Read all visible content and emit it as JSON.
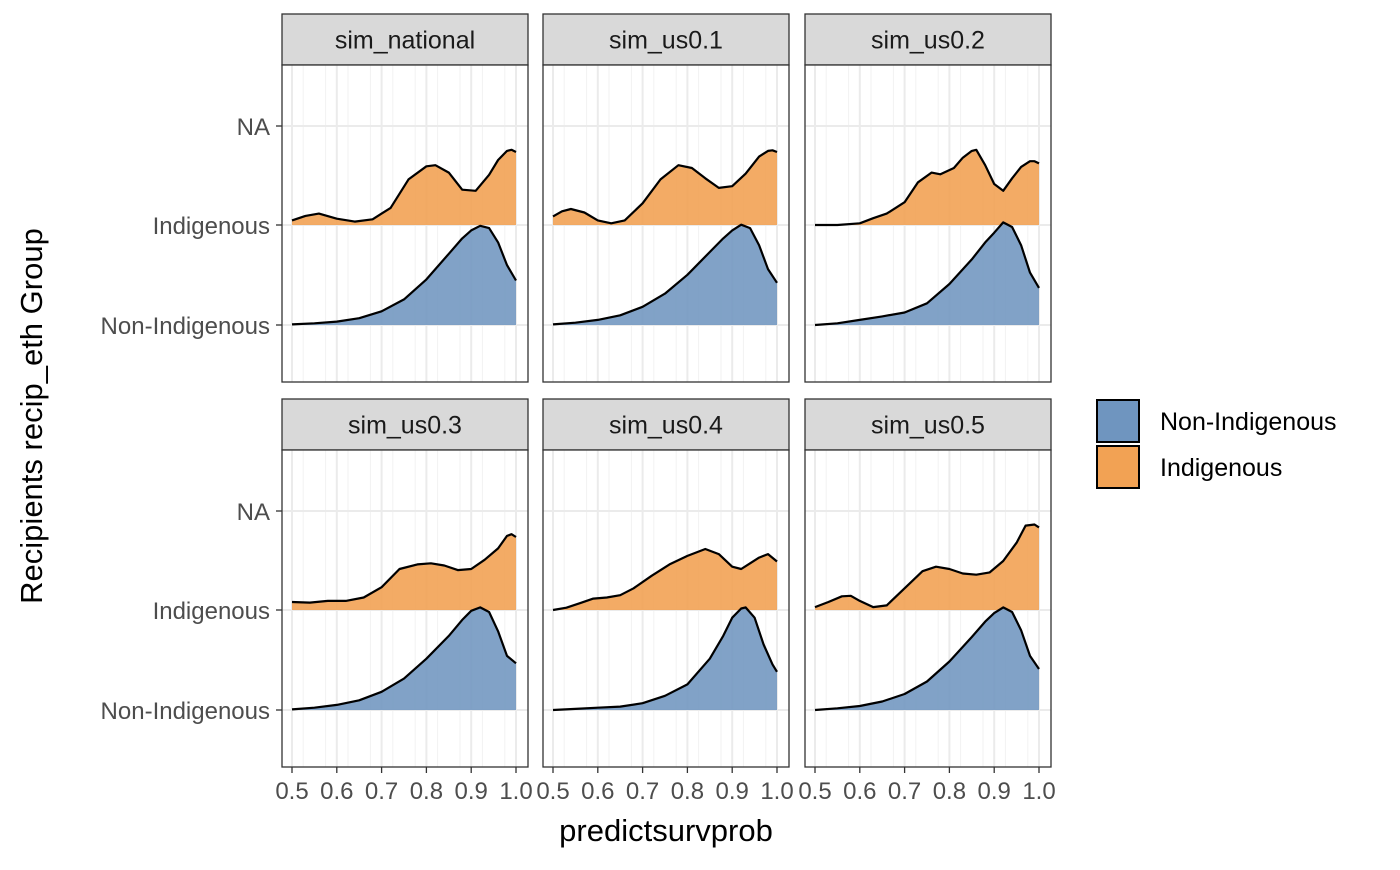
{
  "chart_data": {
    "type": "ridgeline-density",
    "xlabel": "predictsurvprob",
    "ylabel": "Recipients recip_eth Group",
    "xlim": [
      0.5,
      1.0
    ],
    "x_ticks": [
      "0.5",
      "0.6",
      "0.7",
      "0.8",
      "0.9",
      "1.0"
    ],
    "y_categories": [
      "Non-Indigenous",
      "Indigenous",
      "NA"
    ],
    "grid": true,
    "legend_position": "right",
    "legend": [
      {
        "label": "Non-Indigenous",
        "color": "#6f95bf"
      },
      {
        "label": "Indigenous",
        "color": "#f2a254"
      }
    ],
    "series_colors": {
      "Non-Indigenous": "#6f95bf",
      "Indigenous": "#f2a254"
    },
    "panels": [
      {
        "title": "sim_national",
        "series": [
          {
            "name": "Non-Indigenous",
            "baseline": "Non-Indigenous",
            "x": [
              0.5,
              0.55,
              0.6,
              0.65,
              0.7,
              0.75,
              0.8,
              0.85,
              0.88,
              0.9,
              0.92,
              0.94,
              0.96,
              0.98,
              1.0
            ],
            "y": [
              0.01,
              0.03,
              0.06,
              0.12,
              0.24,
              0.45,
              0.8,
              1.25,
              1.52,
              1.66,
              1.74,
              1.7,
              1.45,
              1.05,
              0.78
            ]
          },
          {
            "name": "Indigenous",
            "baseline": "Indigenous",
            "x": [
              0.5,
              0.53,
              0.56,
              0.6,
              0.64,
              0.68,
              0.72,
              0.76,
              0.8,
              0.82,
              0.85,
              0.88,
              0.91,
              0.94,
              0.96,
              0.98,
              0.99,
              1.0
            ],
            "y": [
              0.08,
              0.16,
              0.2,
              0.11,
              0.06,
              0.1,
              0.3,
              0.8,
              1.03,
              1.05,
              0.92,
              0.62,
              0.6,
              0.88,
              1.14,
              1.3,
              1.32,
              1.28
            ]
          }
        ]
      },
      {
        "title": "sim_us0.1",
        "series": [
          {
            "name": "Non-Indigenous",
            "baseline": "Non-Indigenous",
            "x": [
              0.5,
              0.55,
              0.6,
              0.65,
              0.7,
              0.75,
              0.8,
              0.85,
              0.88,
              0.9,
              0.92,
              0.94,
              0.96,
              0.98,
              1.0
            ],
            "y": [
              0.01,
              0.04,
              0.09,
              0.17,
              0.32,
              0.55,
              0.88,
              1.28,
              1.52,
              1.66,
              1.76,
              1.7,
              1.4,
              0.98,
              0.74
            ]
          },
          {
            "name": "Indigenous",
            "baseline": "Indigenous",
            "x": [
              0.5,
              0.52,
              0.54,
              0.57,
              0.6,
              0.63,
              0.66,
              0.7,
              0.74,
              0.78,
              0.81,
              0.84,
              0.87,
              0.9,
              0.93,
              0.96,
              0.98,
              0.99,
              1.0
            ],
            "y": [
              0.15,
              0.24,
              0.28,
              0.22,
              0.08,
              0.03,
              0.08,
              0.38,
              0.8,
              1.05,
              1.0,
              0.82,
              0.65,
              0.68,
              0.9,
              1.2,
              1.3,
              1.31,
              1.28
            ]
          }
        ]
      },
      {
        "title": "sim_us0.2",
        "series": [
          {
            "name": "Non-Indigenous",
            "baseline": "Non-Indigenous",
            "x": [
              0.5,
              0.55,
              0.6,
              0.65,
              0.7,
              0.75,
              0.8,
              0.85,
              0.88,
              0.9,
              0.92,
              0.94,
              0.96,
              0.98,
              1.0
            ],
            "y": [
              0.0,
              0.03,
              0.09,
              0.15,
              0.22,
              0.38,
              0.72,
              1.15,
              1.45,
              1.62,
              1.8,
              1.72,
              1.4,
              0.92,
              0.65
            ]
          },
          {
            "name": "Indigenous",
            "baseline": "Indigenous",
            "x": [
              0.5,
              0.55,
              0.6,
              0.63,
              0.66,
              0.7,
              0.73,
              0.76,
              0.78,
              0.81,
              0.83,
              0.85,
              0.86,
              0.88,
              0.9,
              0.92,
              0.94,
              0.96,
              0.98,
              0.99,
              1.0
            ],
            "y": [
              0.0,
              0.0,
              0.03,
              0.12,
              0.2,
              0.4,
              0.75,
              0.92,
              0.89,
              1.0,
              1.18,
              1.3,
              1.32,
              1.05,
              0.72,
              0.6,
              0.82,
              1.02,
              1.12,
              1.12,
              1.08
            ]
          }
        ]
      },
      {
        "title": "sim_us0.3",
        "series": [
          {
            "name": "Non-Indigenous",
            "baseline": "Non-Indigenous",
            "x": [
              0.5,
              0.55,
              0.6,
              0.65,
              0.7,
              0.75,
              0.8,
              0.85,
              0.88,
              0.9,
              0.92,
              0.94,
              0.96,
              0.98,
              1.0
            ],
            "y": [
              0.01,
              0.04,
              0.09,
              0.17,
              0.32,
              0.55,
              0.9,
              1.3,
              1.58,
              1.74,
              1.8,
              1.72,
              1.38,
              0.95,
              0.82
            ]
          },
          {
            "name": "Indigenous",
            "baseline": "Indigenous",
            "x": [
              0.5,
              0.54,
              0.58,
              0.62,
              0.66,
              0.7,
              0.74,
              0.78,
              0.81,
              0.84,
              0.87,
              0.9,
              0.93,
              0.96,
              0.98,
              0.99,
              1.0
            ],
            "y": [
              0.14,
              0.13,
              0.16,
              0.16,
              0.22,
              0.4,
              0.72,
              0.8,
              0.82,
              0.78,
              0.7,
              0.72,
              0.88,
              1.08,
              1.3,
              1.33,
              1.28
            ]
          }
        ]
      },
      {
        "title": "sim_us0.4",
        "series": [
          {
            "name": "Non-Indigenous",
            "baseline": "Non-Indigenous",
            "x": [
              0.5,
              0.55,
              0.6,
              0.65,
              0.7,
              0.75,
              0.8,
              0.85,
              0.88,
              0.9,
              0.92,
              0.93,
              0.95,
              0.97,
              0.99,
              1.0
            ],
            "y": [
              0.0,
              0.02,
              0.04,
              0.06,
              0.12,
              0.25,
              0.45,
              0.9,
              1.3,
              1.62,
              1.78,
              1.8,
              1.62,
              1.15,
              0.8,
              0.67
            ]
          },
          {
            "name": "Indigenous",
            "baseline": "Indigenous",
            "x": [
              0.5,
              0.53,
              0.56,
              0.59,
              0.62,
              0.65,
              0.68,
              0.72,
              0.76,
              0.8,
              0.84,
              0.87,
              0.9,
              0.92,
              0.94,
              0.96,
              0.98,
              1.0
            ],
            "y": [
              0.0,
              0.04,
              0.12,
              0.2,
              0.22,
              0.26,
              0.38,
              0.6,
              0.8,
              0.95,
              1.07,
              0.98,
              0.76,
              0.72,
              0.82,
              0.92,
              0.98,
              0.85
            ]
          }
        ]
      },
      {
        "title": "sim_us0.5",
        "series": [
          {
            "name": "Non-Indigenous",
            "baseline": "Non-Indigenous",
            "x": [
              0.5,
              0.55,
              0.6,
              0.65,
              0.7,
              0.75,
              0.8,
              0.85,
              0.88,
              0.9,
              0.92,
              0.94,
              0.96,
              0.98,
              1.0
            ],
            "y": [
              0.0,
              0.03,
              0.07,
              0.15,
              0.28,
              0.5,
              0.85,
              1.28,
              1.55,
              1.7,
              1.8,
              1.72,
              1.4,
              0.95,
              0.72
            ]
          },
          {
            "name": "Indigenous",
            "baseline": "Indigenous",
            "x": [
              0.5,
              0.53,
              0.56,
              0.58,
              0.6,
              0.63,
              0.66,
              0.7,
              0.74,
              0.77,
              0.8,
              0.83,
              0.86,
              0.89,
              0.92,
              0.95,
              0.97,
              0.99,
              1.0
            ],
            "y": [
              0.05,
              0.14,
              0.24,
              0.25,
              0.16,
              0.05,
              0.08,
              0.38,
              0.68,
              0.76,
              0.72,
              0.64,
              0.62,
              0.66,
              0.86,
              1.18,
              1.48,
              1.5,
              1.45
            ]
          }
        ]
      }
    ]
  }
}
